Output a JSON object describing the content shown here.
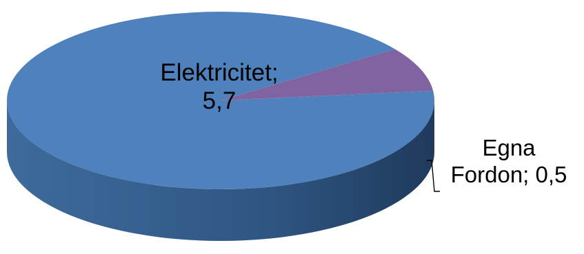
{
  "chart_data": {
    "type": "pie",
    "style": "3d",
    "slices": [
      {
        "label": "Elektricitet",
        "value": 5.7,
        "display": "5,7",
        "color": "#4f81bd"
      },
      {
        "label": "Egna Fordon",
        "value": 0.5,
        "display": "0,5",
        "color": "#8064a2"
      }
    ],
    "data_labels": [
      {
        "line1": "Elektricitet;",
        "line2": "5,7"
      },
      {
        "line1": "Egna",
        "line2": "Fordon; 0,5"
      }
    ]
  }
}
